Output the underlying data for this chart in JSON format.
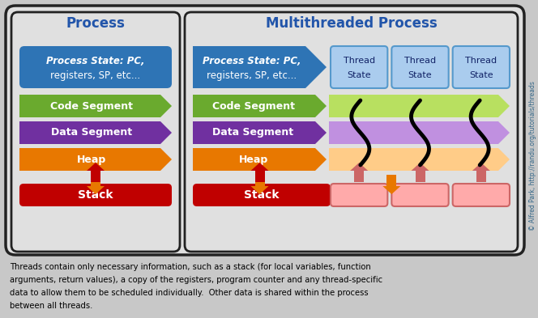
{
  "title_process": "Process",
  "title_multi": "Multithreaded Process",
  "bg_color": "#c8c8c8",
  "process_state_color": "#2e74b5",
  "code_segment_color": "#6aaa2e",
  "data_segment_color": "#7030a0",
  "heap_color": "#e87800",
  "stack_color": "#c00000",
  "thread_state_color": "#aaccee",
  "thread_state_border": "#5599cc",
  "thread_stack_color": "#ffaaaa",
  "thread_stack_border": "#cc6666",
  "shared_code_color": "#b8e060",
  "shared_data_color": "#c090e0",
  "shared_heap_color": "#ffcc88",
  "panel_bg": "#e0e0e0",
  "panel_border": "#222222",
  "caption": "Threads contain only necessary information, such as a stack (for local variables, function\narguments, return values), a copy of the registers, program counter and any thread-specific\ndata to allow them to be scheduled individually.  Other data is shared within the process\nbetween all threads.",
  "watermark": "© Alfred Park, http://randu.org/tutorials/threads"
}
